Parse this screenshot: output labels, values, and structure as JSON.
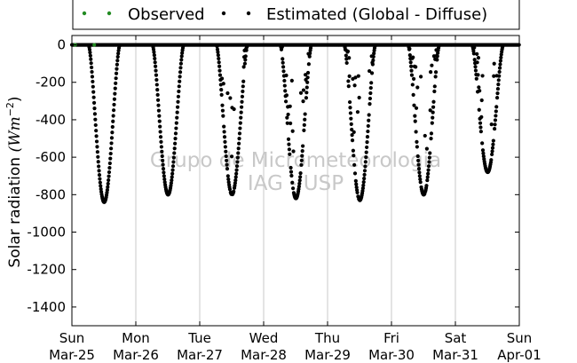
{
  "chart_data": {
    "type": "scatter",
    "title": "",
    "xlabel": "",
    "ylabel_text": "Solar radiation ",
    "ylabel_unit_base": "(Wm",
    "ylabel_unit_exp": "−2",
    "ylabel_unit_close": ")",
    "ylim": [
      -1500,
      50
    ],
    "yticks": [
      0,
      -200,
      -400,
      -600,
      -800,
      -1000,
      -1200,
      -1400
    ],
    "xlim": [
      "2012-03-25 00:00",
      "2012-04-01 00:00"
    ],
    "xticks": [
      {
        "day": "Sun",
        "date": "Mar-25"
      },
      {
        "day": "Mon",
        "date": "Mar-26"
      },
      {
        "day": "Tue",
        "date": "Mar-27"
      },
      {
        "day": "Wed",
        "date": "Mar-28"
      },
      {
        "day": "Thu",
        "date": "Mar-29"
      },
      {
        "day": "Fri",
        "date": "Mar-30"
      },
      {
        "day": "Sat",
        "date": "Mar-31"
      },
      {
        "day": "Sun",
        "date": "Apr-01"
      }
    ],
    "grid": {
      "x": true,
      "y": false
    },
    "legend_position": "top, above plot",
    "watermark": [
      "Grupo de Micrometeorologia",
      "IAG - USP"
    ],
    "series": [
      {
        "name": "Observed",
        "color": "#228b22",
        "values": [
          0,
          0
        ]
      },
      {
        "name": "Estimated (Global - Diffuse)",
        "color": "#000000",
        "daily_minimum": [
          {
            "date": "Mar-25",
            "min": -840
          },
          {
            "date": "Mar-26",
            "min": -800
          },
          {
            "date": "Mar-27",
            "min": -800
          },
          {
            "date": "Mar-28",
            "min": -820
          },
          {
            "date": "Mar-29",
            "min": -830
          },
          {
            "date": "Mar-30",
            "min": -800
          },
          {
            "date": "Mar-31",
            "min": -680
          }
        ]
      }
    ]
  }
}
